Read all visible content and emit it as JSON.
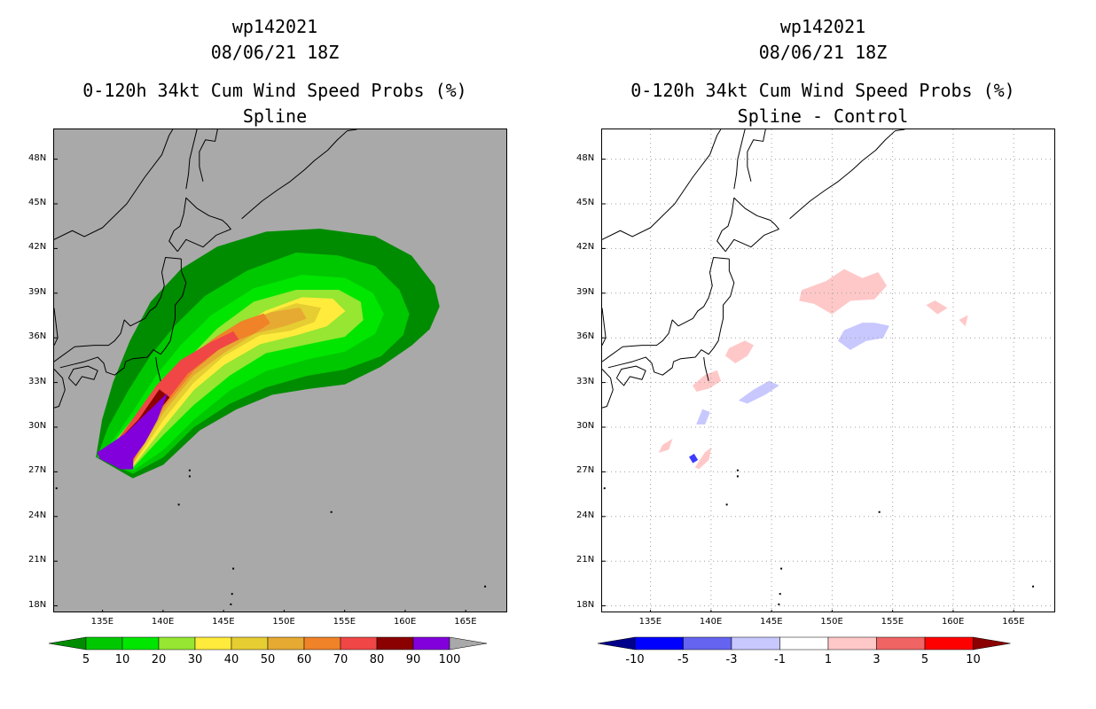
{
  "panels": [
    {
      "storm": "wp142021",
      "datetime": "08/06/21 18Z",
      "product": "0-120h 34kt Cum Wind Speed Probs (%)",
      "method": "Spline",
      "background": "#a9a9a9"
    },
    {
      "storm": "wp142021",
      "datetime": "08/06/21 18Z",
      "product": "0-120h 34kt Cum Wind Speed Probs (%)",
      "method": "Spline - Control",
      "background": "#ffffff"
    }
  ],
  "axes": {
    "lat_labels": [
      "48N",
      "45N",
      "42N",
      "39N",
      "36N",
      "33N",
      "30N",
      "27N",
      "24N",
      "21N",
      "18N"
    ],
    "lon_labels": [
      "135E",
      "140E",
      "145E",
      "150E",
      "155E",
      "160E",
      "165E"
    ]
  },
  "colorbar_prob": {
    "labels": [
      "5",
      "10",
      "20",
      "30",
      "40",
      "50",
      "60",
      "70",
      "80",
      "90",
      "100"
    ],
    "colors": [
      "#008c00",
      "#00c800",
      "#00e600",
      "#96e632",
      "#ffeb3b",
      "#e6cd32",
      "#e6aa32",
      "#f08228",
      "#f04646",
      "#8b0000",
      "#8200dc",
      "#a9a9a9"
    ]
  },
  "colorbar_diff": {
    "labels": [
      "-10",
      "-5",
      "-3",
      "-1",
      "1",
      "3",
      "5",
      "10"
    ],
    "colors": [
      "#00008b",
      "#0000ff",
      "#6464f0",
      "#c8c8ff",
      "#ffffff",
      "#ffc8c8",
      "#f06464",
      "#ff0000",
      "#8b0000"
    ]
  },
  "chart_data": [
    {
      "type": "heatmap",
      "title": "wp142021 08/06/21 18Z 0-120h 34kt Cum Wind Speed Probs (%) Spline",
      "xlim": [
        131,
        168.5
      ],
      "ylim": [
        17.5,
        50
      ],
      "contour_levels": [
        5,
        10,
        20,
        30,
        40,
        50,
        60,
        70,
        80,
        90,
        100
      ],
      "regions": [
        {
          "level": 5,
          "points": [
            [
              137.5,
              26.6
            ],
            [
              140,
              27.5
            ],
            [
              143,
              29.8
            ],
            [
              146,
              31.2
            ],
            [
              149,
              32.2
            ],
            [
              152,
              32.6
            ],
            [
              155,
              32.9
            ],
            [
              158,
              34.1
            ],
            [
              160.5,
              35.5
            ],
            [
              162,
              36.6
            ],
            [
              162.8,
              38.1
            ],
            [
              162.4,
              39.5
            ],
            [
              160.5,
              41.5
            ],
            [
              157.5,
              42.8
            ],
            [
              153,
              43.3
            ],
            [
              148.5,
              43.1
            ],
            [
              144.5,
              42.1
            ],
            [
              141.5,
              40.6
            ],
            [
              139,
              38.4
            ],
            [
              137.3,
              35.8
            ],
            [
              135.9,
              33
            ],
            [
              135,
              30.5
            ],
            [
              134.5,
              28
            ]
          ]
        },
        {
          "level": 10,
          "points": [
            [
              137.5,
              26.9
            ],
            [
              140,
              28
            ],
            [
              142.5,
              30
            ],
            [
              145.5,
              31.6
            ],
            [
              148.5,
              32.7
            ],
            [
              152,
              33.5
            ],
            [
              155,
              33.9
            ],
            [
              158,
              34.8
            ],
            [
              159.8,
              36.2
            ],
            [
              160.3,
              37.6
            ],
            [
              159.5,
              39.2
            ],
            [
              157.5,
              40.8
            ],
            [
              154.5,
              41.5
            ],
            [
              151,
              41.7
            ],
            [
              147,
              40.5
            ],
            [
              143.5,
              38.8
            ],
            [
              141,
              36.8
            ],
            [
              139,
              34.8
            ],
            [
              137.2,
              32.5
            ],
            [
              135.5,
              30
            ],
            [
              134.6,
              28
            ]
          ]
        },
        {
          "level": 20,
          "points": [
            [
              137.5,
              27.1
            ],
            [
              140,
              28.5
            ],
            [
              142.5,
              30.5
            ],
            [
              145.5,
              32.5
            ],
            [
              148.5,
              33.8
            ],
            [
              152,
              34.6
            ],
            [
              155,
              35.1
            ],
            [
              157.5,
              36.3
            ],
            [
              158.2,
              37.6
            ],
            [
              157.3,
              39
            ],
            [
              155,
              40
            ],
            [
              151.5,
              40.2
            ],
            [
              147.5,
              39.3
            ],
            [
              144,
              37.5
            ],
            [
              141.5,
              35.5
            ],
            [
              139.5,
              33.5
            ],
            [
              137.5,
              31
            ],
            [
              135.8,
              29
            ],
            [
              134.7,
              28
            ]
          ]
        },
        {
          "level": 30,
          "points": [
            [
              137.5,
              27.3
            ],
            [
              140,
              29.5
            ],
            [
              142.5,
              31.5
            ],
            [
              145.5,
              33.5
            ],
            [
              148.5,
              35
            ],
            [
              152,
              35.6
            ],
            [
              155,
              36.1
            ],
            [
              156.5,
              37.2
            ],
            [
              156.3,
              38.4
            ],
            [
              154.5,
              39.2
            ],
            [
              151,
              39.2
            ],
            [
              147.5,
              38.4
            ],
            [
              144.5,
              36.6
            ],
            [
              142,
              34.5
            ],
            [
              139.5,
              32.5
            ],
            [
              137.5,
              30.5
            ],
            [
              135.8,
              28.8
            ],
            [
              134.8,
              28
            ]
          ]
        },
        {
          "level": 40,
          "points": [
            [
              137.5,
              27.4
            ],
            [
              140,
              30
            ],
            [
              142.5,
              32.5
            ],
            [
              145,
              34.2
            ],
            [
              148,
              35.6
            ],
            [
              151,
              36.2
            ],
            [
              153.5,
              36.8
            ],
            [
              155,
              37.8
            ],
            [
              154,
              38.6
            ],
            [
              151.5,
              38.7
            ],
            [
              148.5,
              37.8
            ],
            [
              145.5,
              36.3
            ],
            [
              143,
              34.6
            ],
            [
              140.5,
              32.5
            ],
            [
              138.5,
              30.5
            ],
            [
              136.5,
              29
            ],
            [
              134.9,
              28
            ]
          ]
        },
        {
          "level": 50,
          "points": [
            [
              137.5,
              27.5
            ],
            [
              140,
              30.5
            ],
            [
              142.5,
              33
            ],
            [
              145,
              34.8
            ],
            [
              148,
              36.2
            ],
            [
              150.5,
              36.5
            ],
            [
              152.5,
              37.1
            ],
            [
              153,
              38
            ],
            [
              151,
              38.3
            ],
            [
              148.5,
              37.6
            ],
            [
              145.5,
              36.3
            ],
            [
              143,
              34.8
            ],
            [
              140.5,
              33
            ],
            [
              138.5,
              31
            ],
            [
              136.5,
              29.3
            ],
            [
              135,
              28
            ]
          ]
        },
        {
          "level": 60,
          "points": [
            [
              137.5,
              27.6
            ],
            [
              140,
              31
            ],
            [
              142.5,
              33.5
            ],
            [
              145,
              35
            ],
            [
              147.5,
              36.3
            ],
            [
              150,
              36.8
            ],
            [
              151.8,
              37.3
            ],
            [
              151.3,
              38
            ],
            [
              149,
              37.7
            ],
            [
              146.5,
              36.9
            ],
            [
              144,
              35.4
            ],
            [
              141.5,
              33.7
            ],
            [
              139,
              31.5
            ],
            [
              137,
              29.6
            ],
            [
              135.2,
              28
            ]
          ]
        },
        {
          "level": 70,
          "points": [
            [
              137.5,
              27.7
            ],
            [
              140,
              31.3
            ],
            [
              142.5,
              33.8
            ],
            [
              145,
              35.5
            ],
            [
              147.5,
              36.3
            ],
            [
              148.8,
              37
            ],
            [
              148.3,
              37.6
            ],
            [
              146.5,
              37.1
            ],
            [
              144.5,
              36.1
            ],
            [
              142,
              34.6
            ],
            [
              139.5,
              32.5
            ],
            [
              137.3,
              30
            ],
            [
              135.3,
              28
            ]
          ]
        },
        {
          "level": 80,
          "points": [
            [
              137.5,
              27.8
            ],
            [
              140,
              31.5
            ],
            [
              142,
              33.6
            ],
            [
              144.5,
              35.2
            ],
            [
              146.2,
              35.9
            ],
            [
              145.8,
              36.4
            ],
            [
              144,
              35.7
            ],
            [
              141.5,
              34.5
            ],
            [
              139.5,
              32.8
            ],
            [
              137.5,
              30.5
            ],
            [
              135.5,
              28.3
            ]
          ]
        },
        {
          "level": 90,
          "points": [
            [
              137.5,
              27.9
            ],
            [
              139.5,
              31
            ],
            [
              140.5,
              32
            ],
            [
              139.7,
              32.5
            ],
            [
              138,
              30.5
            ],
            [
              136,
              28.8
            ],
            [
              135.5,
              28
            ]
          ]
        },
        {
          "level": 100,
          "points": [
            [
              135,
              28.5
            ],
            [
              137,
              29.6
            ],
            [
              138.5,
              30.8
            ],
            [
              140.3,
              32.2
            ],
            [
              139.5,
              30.5
            ],
            [
              138.5,
              29
            ],
            [
              137.5,
              27.9
            ],
            [
              137.5,
              27.2
            ],
            [
              136.5,
              27.2
            ],
            [
              135.8,
              27.5
            ],
            [
              134.8,
              27.9
            ],
            [
              134.6,
              28.3
            ]
          ]
        }
      ]
    },
    {
      "type": "heatmap",
      "title": "wp142021 08/06/21 18Z 0-120h 34kt Cum Wind Speed Probs (%) Spline - Control",
      "xlim": [
        131,
        168.5
      ],
      "ylim": [
        17.5,
        50
      ],
      "contour_levels": [
        -10,
        -5,
        -3,
        -1,
        1,
        3,
        5,
        10
      ],
      "regions": [
        {
          "level": 1,
          "points": [
            [
              147.5,
              39.2
            ],
            [
              149.5,
              39.8
            ],
            [
              151,
              40.6
            ],
            [
              152.5,
              40
            ],
            [
              153.8,
              40.4
            ],
            [
              154.5,
              39.5
            ],
            [
              153.5,
              38.6
            ],
            [
              151.5,
              38.5
            ],
            [
              150,
              37.6
            ],
            [
              148.5,
              38.3
            ],
            [
              147.3,
              38.5
            ]
          ]
        },
        {
          "level": 1,
          "points": [
            [
              157.8,
              38.2
            ],
            [
              158.5,
              38.5
            ],
            [
              159.5,
              38
            ],
            [
              158.7,
              37.6
            ]
          ]
        },
        {
          "level": 1,
          "points": [
            [
              160.5,
              37.2
            ],
            [
              161.2,
              37.5
            ],
            [
              161,
              36.8
            ]
          ]
        },
        {
          "level": 1,
          "points": [
            [
              141.5,
              35.3
            ],
            [
              142.8,
              35.8
            ],
            [
              143.5,
              35.5
            ],
            [
              143,
              34.8
            ],
            [
              142,
              34.3
            ],
            [
              141.2,
              34.8
            ]
          ]
        },
        {
          "level": 1,
          "points": [
            [
              138.5,
              32.8
            ],
            [
              139.5,
              33.5
            ],
            [
              140.5,
              33.8
            ],
            [
              140.8,
              33.1
            ],
            [
              139.8,
              32.6
            ],
            [
              138.8,
              32.4
            ]
          ]
        },
        {
          "level": 1,
          "points": [
            [
              136,
              28.8
            ],
            [
              136.8,
              29.2
            ],
            [
              136.5,
              28.5
            ],
            [
              135.7,
              28.3
            ]
          ]
        },
        {
          "level": 1,
          "points": [
            [
              138.7,
              27.3
            ],
            [
              139.5,
              28.3
            ],
            [
              140,
              28.6
            ],
            [
              139.8,
              27.8
            ],
            [
              139,
              27.2
            ]
          ]
        },
        {
          "level": -1,
          "points": [
            [
              151,
              36.5
            ],
            [
              152.5,
              37
            ],
            [
              153.5,
              37
            ],
            [
              154.7,
              36.8
            ],
            [
              154.2,
              36
            ],
            [
              152.8,
              35.8
            ],
            [
              151.5,
              35.2
            ],
            [
              150.5,
              35.8
            ]
          ]
        },
        {
          "level": -1,
          "points": [
            [
              142.3,
              31.8
            ],
            [
              143.5,
              32.5
            ],
            [
              144.8,
              33.1
            ],
            [
              145.6,
              32.8
            ],
            [
              144.5,
              32.2
            ],
            [
              143,
              31.6
            ]
          ]
        },
        {
          "level": -1,
          "points": [
            [
              138.8,
              30.2
            ],
            [
              139.3,
              31.2
            ],
            [
              139.9,
              31
            ],
            [
              139.5,
              30.2
            ]
          ]
        },
        {
          "level": -3,
          "points": [
            [
              138.2,
              28
            ],
            [
              138.6,
              28.2
            ],
            [
              138.9,
              27.8
            ],
            [
              138.5,
              27.6
            ]
          ]
        }
      ]
    }
  ]
}
